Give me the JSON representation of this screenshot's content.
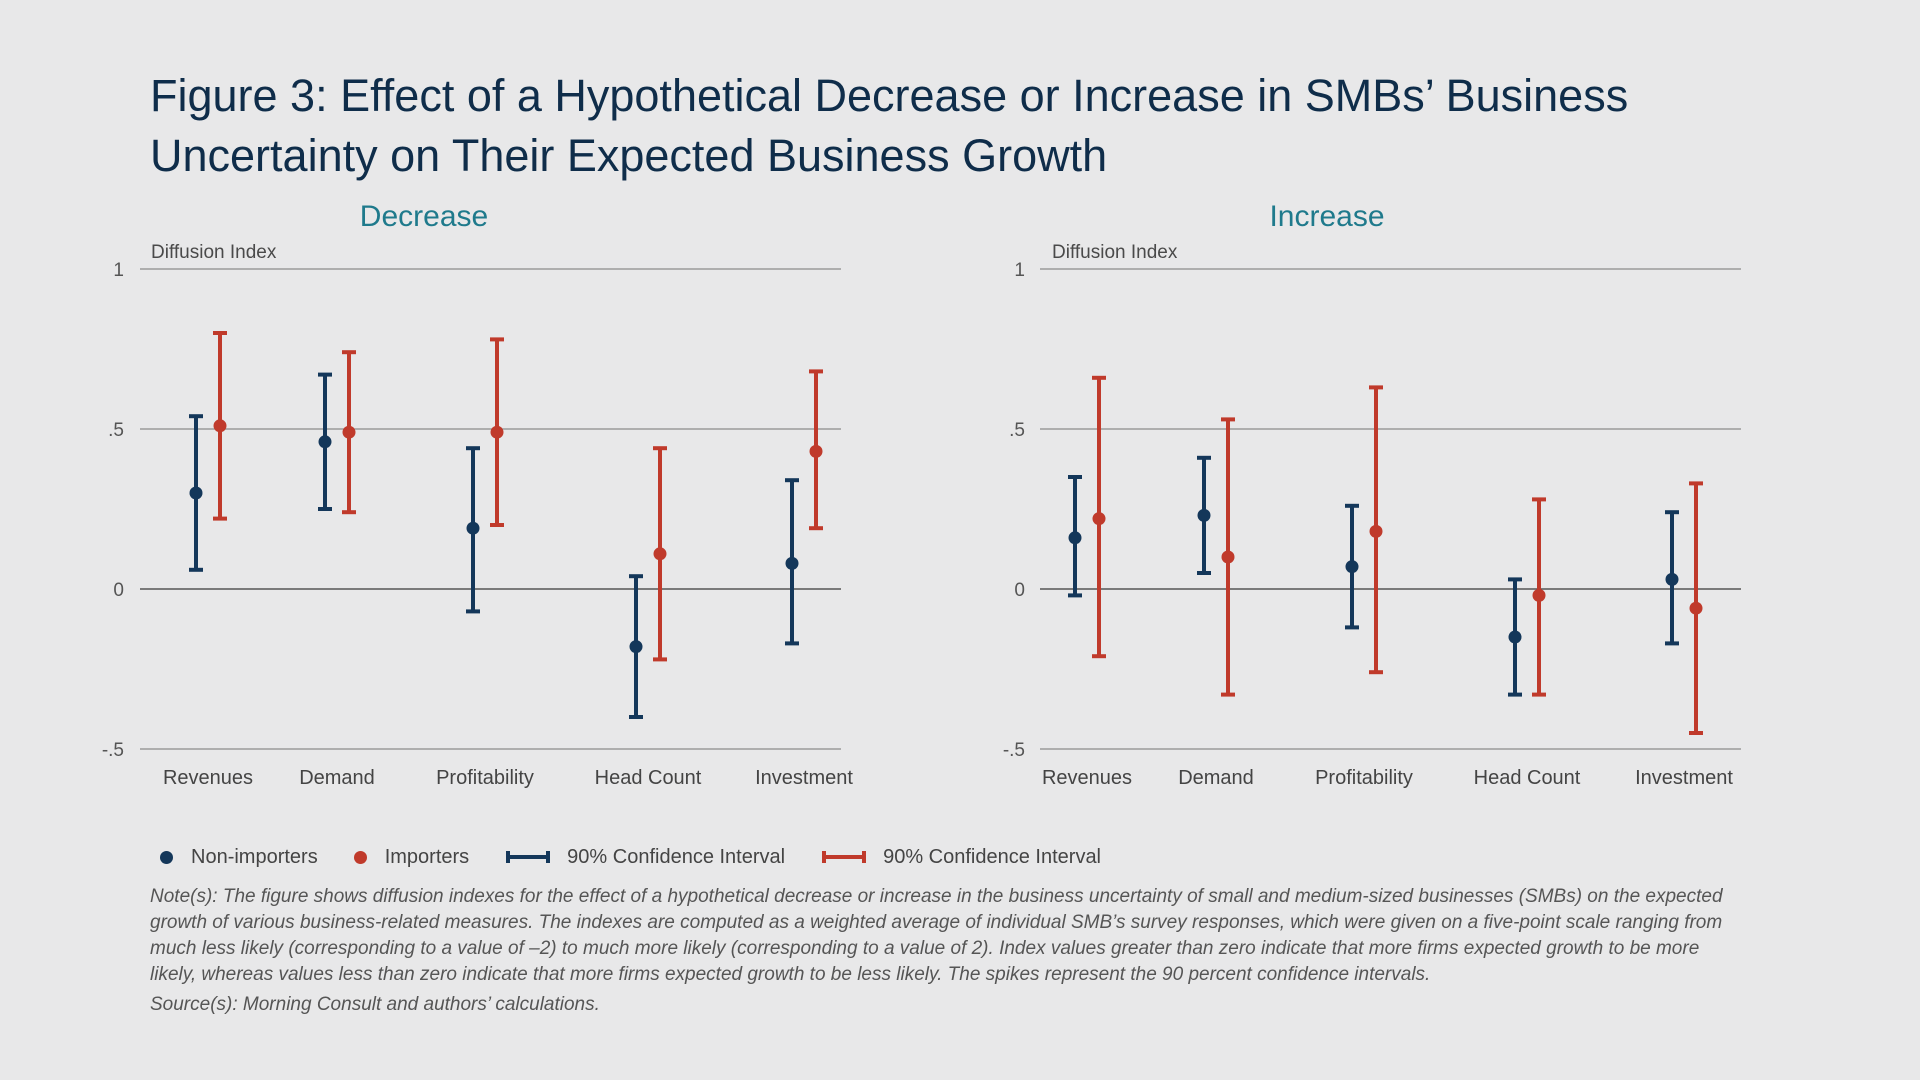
{
  "title": "Figure 3: Effect of a Hypothetical Decrease or Increase in SMBs’ Business Uncertainty on Their Expected Business Growth",
  "legend": {
    "non_importers": "Non-importers",
    "importers": "Importers",
    "ci_non_importers": "90% Confidence Interval",
    "ci_importers": "90% Confidence Interval"
  },
  "notes": "Note(s): The figure shows diffusion indexes for the effect of a hypothetical decrease or increase in the business uncertainty of small and medium-sized businesses (SMBs) on the expected growth of various business-related measures. The indexes are computed as a weighted average of individual SMB’s survey responses, which were given on a five-point scale ranging from much less likely (corresponding to a value of –2) to much more likely (corresponding to a value of 2). Index values greater than zero indicate that more firms expected growth to be more likely, whereas values less than zero indicate that more firms expected growth to be less likely. The spikes represent the 90 percent confidence intervals.",
  "source": "Source(s): Morning Consult and authors’ calculations.",
  "colors": {
    "non_importers": "#14375a",
    "importers": "#c03a2b",
    "panel_title": "#1f7a8c",
    "gridline": "#8c8c8c",
    "zero_line": "#555555"
  },
  "chart_data": [
    {
      "type": "scatter",
      "title": "Decrease",
      "ylabel": "Diffusion Index",
      "ylim": [
        -0.5,
        1
      ],
      "yticks": [
        1,
        0.5,
        0,
        -0.5
      ],
      "ytick_labels": [
        "1",
        ".5",
        "0",
        "-.5"
      ],
      "grid": true,
      "categories": [
        "Revenues",
        "Demand",
        "Profitability",
        "Head Count",
        "Investment"
      ],
      "series": [
        {
          "name": "Non-importers",
          "values": [
            0.3,
            0.46,
            0.19,
            -0.18,
            0.08
          ],
          "ci_low": [
            0.06,
            0.25,
            -0.07,
            -0.4,
            -0.17
          ],
          "ci_high": [
            0.54,
            0.67,
            0.44,
            0.04,
            0.34
          ]
        },
        {
          "name": "Importers",
          "values": [
            0.51,
            0.49,
            0.49,
            0.11,
            0.43
          ],
          "ci_low": [
            0.22,
            0.24,
            0.2,
            -0.22,
            0.19
          ],
          "ci_high": [
            0.8,
            0.74,
            0.78,
            0.44,
            0.68
          ]
        }
      ]
    },
    {
      "type": "scatter",
      "title": "Increase",
      "ylabel": "Diffusion Index",
      "ylim": [
        -0.5,
        1
      ],
      "yticks": [
        1,
        0.5,
        0,
        -0.5
      ],
      "ytick_labels": [
        "1",
        ".5",
        "0",
        "-.5"
      ],
      "grid": true,
      "categories": [
        "Revenues",
        "Demand",
        "Profitability",
        "Head Count",
        "Investment"
      ],
      "series": [
        {
          "name": "Non-importers",
          "values": [
            0.16,
            0.23,
            0.07,
            -0.15,
            0.03
          ],
          "ci_low": [
            -0.02,
            0.05,
            -0.12,
            -0.33,
            -0.17
          ],
          "ci_high": [
            0.35,
            0.41,
            0.26,
            0.03,
            0.24
          ]
        },
        {
          "name": "Importers",
          "values": [
            0.22,
            0.1,
            0.18,
            -0.02,
            -0.06
          ],
          "ci_low": [
            -0.21,
            -0.33,
            -0.26,
            -0.33,
            -0.45
          ],
          "ci_high": [
            0.66,
            0.53,
            0.63,
            0.28,
            0.33
          ]
        }
      ]
    }
  ]
}
